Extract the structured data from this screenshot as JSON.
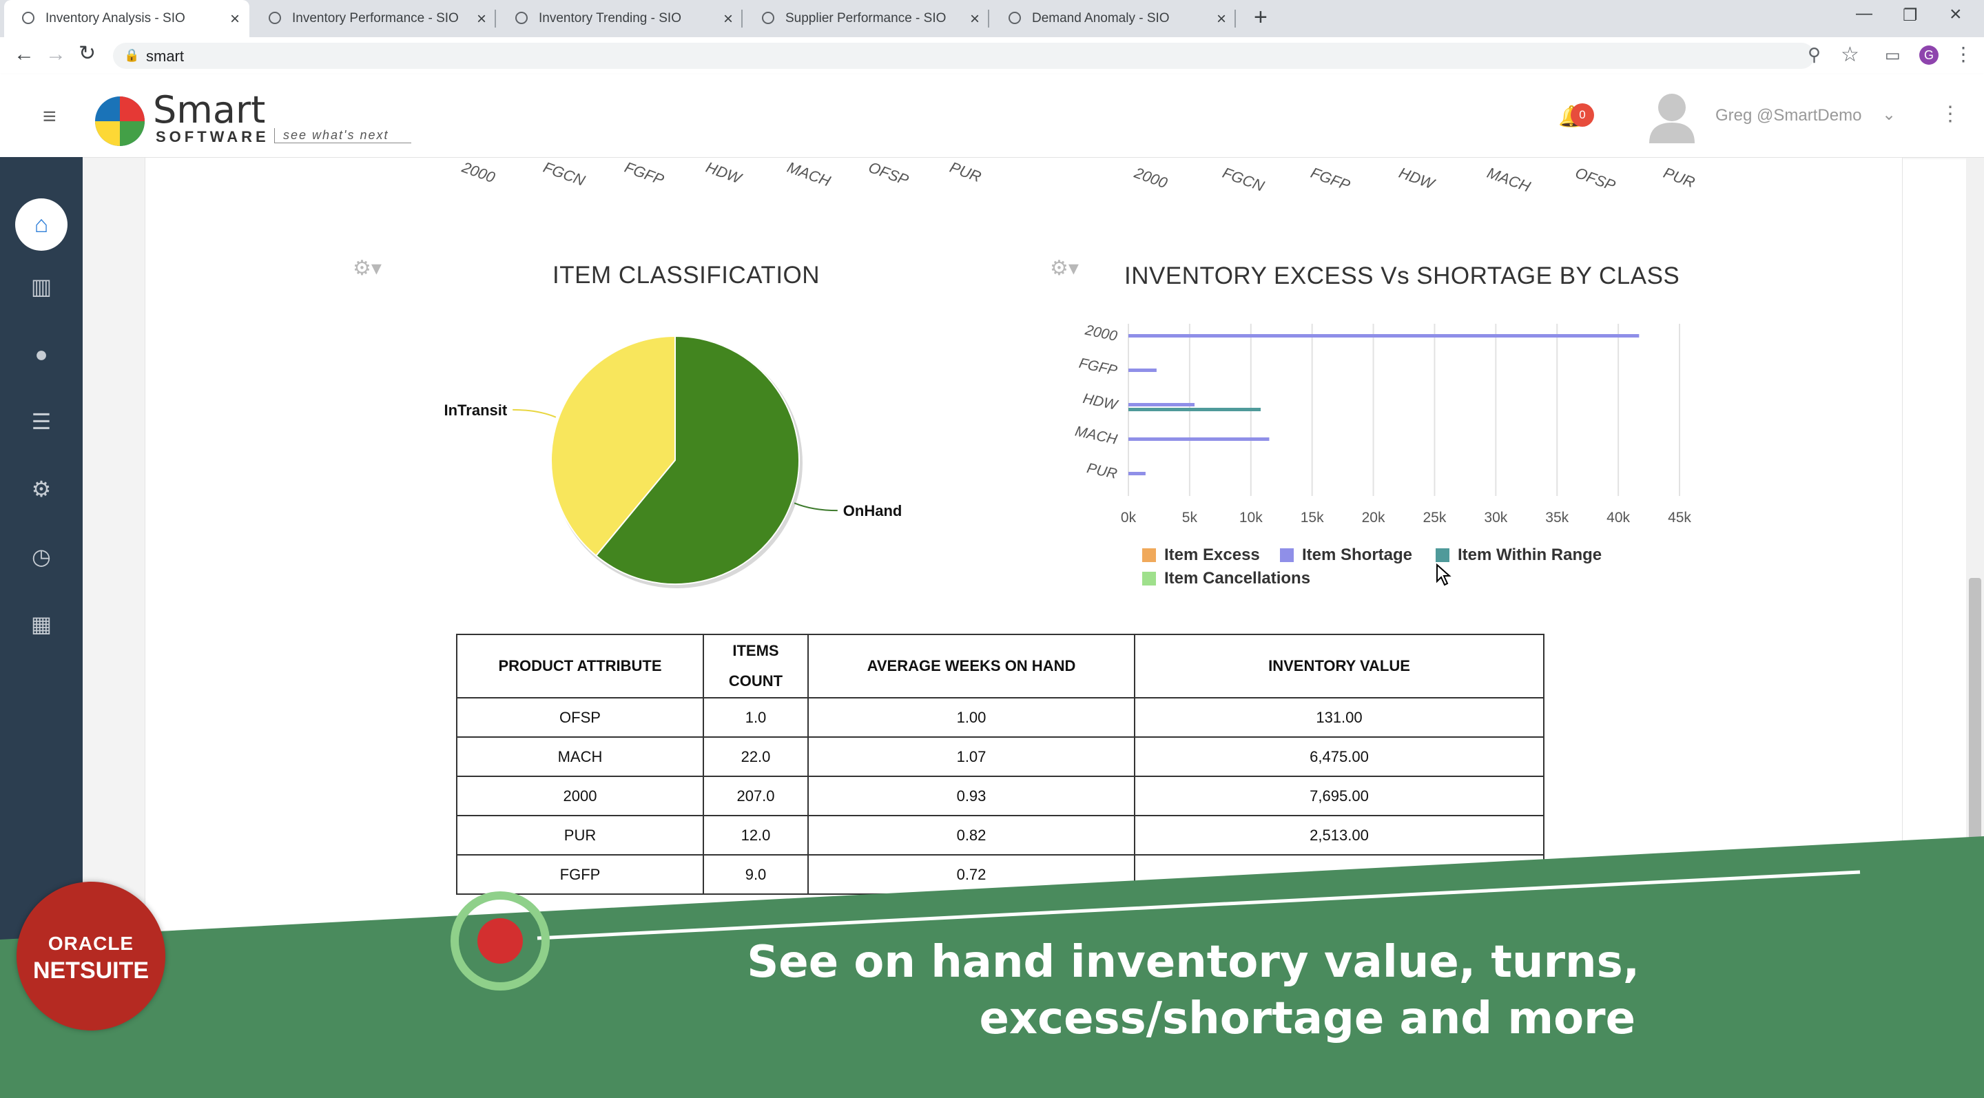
{
  "browser": {
    "tabs": [
      {
        "label": "Inventory Analysis - SIO",
        "active": true
      },
      {
        "label": "Inventory Performance - SIO",
        "active": false
      },
      {
        "label": "Inventory Trending - SIO",
        "active": false
      },
      {
        "label": "Supplier Performance - SIO",
        "active": false
      },
      {
        "label": "Demand Anomaly - SIO",
        "active": false
      }
    ],
    "new_tab": "+",
    "address": "smart",
    "profile_initial": "G"
  },
  "header": {
    "logo_word": "Smart",
    "logo_sub": "SOFTWARE",
    "tagline": "see what's next",
    "notification_count": "0",
    "user": "Greg @SmartDemo"
  },
  "sidebar_icons": [
    "home-icon",
    "bar-chart-icon",
    "network-icon",
    "list-icon",
    "gear-icon",
    "clock-icon",
    "cubes-icon"
  ],
  "top_axes": {
    "left": [
      "2000",
      "FGCN",
      "FGFP",
      "HDW",
      "MACH",
      "OFSP",
      "PUR"
    ],
    "right": [
      "2000",
      "FGCN",
      "FGFP",
      "HDW",
      "MACH",
      "OFSP",
      "PUR"
    ]
  },
  "pie_chart": {
    "title": "ITEM CLASSIFICATION",
    "chart_data": {
      "type": "pie",
      "title": "ITEM CLASSIFICATION",
      "slices": [
        {
          "label": "OnHand",
          "value": 61,
          "color": "#42851f"
        },
        {
          "label": "InTransit",
          "value": 39,
          "color": "#f8e65c"
        }
      ]
    }
  },
  "bar_chart": {
    "title": "INVENTORY EXCESS Vs SHORTAGE BY CLASS",
    "chart_data": {
      "type": "bar",
      "orientation": "horizontal",
      "title": "INVENTORY EXCESS Vs SHORTAGE BY CLASS",
      "categories": [
        "2000",
        "FGFP",
        "HDW",
        "MACH",
        "PUR"
      ],
      "xlim": [
        0,
        45000
      ],
      "x_ticks": [
        "0k",
        "5k",
        "10k",
        "15k",
        "20k",
        "25k",
        "30k",
        "35k",
        "40k",
        "45k"
      ],
      "series": [
        {
          "name": "Item Excess",
          "color": "#f0a95b",
          "values": [
            0,
            0,
            0,
            0,
            0
          ]
        },
        {
          "name": "Item Shortage",
          "color": "#8f8fe8",
          "values": [
            41700,
            2300,
            5400,
            11500,
            1400
          ]
        },
        {
          "name": "Item Within Range",
          "color": "#4f9a9a",
          "values": [
            0,
            0,
            10800,
            0,
            0
          ]
        },
        {
          "name": "Item Cancellations",
          "color": "#9fe08c",
          "values": [
            0,
            0,
            0,
            0,
            0
          ]
        }
      ],
      "grid": true,
      "legend": "bottom"
    }
  },
  "table": {
    "headers": [
      "PRODUCT ATTRIBUTE",
      "ITEMS COUNT",
      "AVERAGE WEEKS ON HAND",
      "INVENTORY VALUE"
    ],
    "rows": [
      [
        "OFSP",
        "1.0",
        "1.00",
        "131.00"
      ],
      [
        "MACH",
        "22.0",
        "1.07",
        "6,475.00"
      ],
      [
        "2000",
        "207.0",
        "0.93",
        "7,695.00"
      ],
      [
        "PUR",
        "12.0",
        "0.82",
        "2,513.00"
      ],
      [
        "FGFP",
        "9.0",
        "0.72",
        ""
      ]
    ]
  },
  "overlay": {
    "badge_line1": "ORACLE",
    "badge_line2": "NETSUITE",
    "line1": "See on hand inventory value, turns,",
    "line2": "excess/shortage and more"
  }
}
